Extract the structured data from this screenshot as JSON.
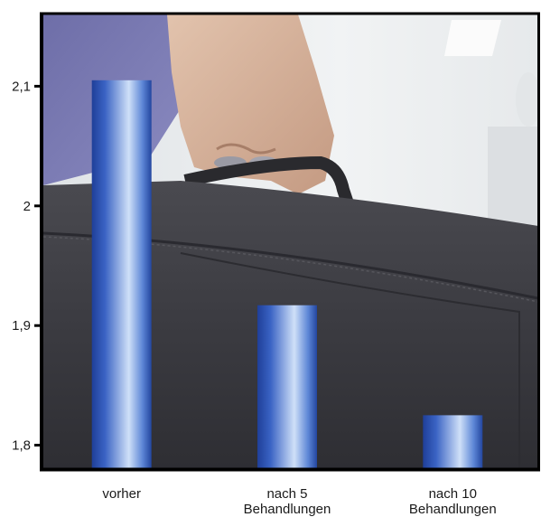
{
  "chart_data": {
    "type": "bar",
    "title": "",
    "xlabel": "",
    "ylabel": "",
    "categories": [
      [
        "vorher"
      ],
      [
        "nach 5",
        "Behandlungen"
      ],
      [
        "nach 10",
        "Behandlungen"
      ]
    ],
    "values": [
      2.105,
      1.917,
      1.825
    ],
    "ylim": [
      1.78,
      2.16
    ],
    "yticks": [
      {
        "value": 1.8,
        "label": "1,8"
      },
      {
        "value": 1.9,
        "label": "1,9"
      },
      {
        "value": 2.0,
        "label": "2"
      },
      {
        "value": 2.1,
        "label": "2,1"
      }
    ],
    "grid": false,
    "legend": "none",
    "bar_color": "#2f57b8",
    "bar_highlight": "#c9dcf7",
    "background": "photo of a hand holding a dark briefcase"
  }
}
